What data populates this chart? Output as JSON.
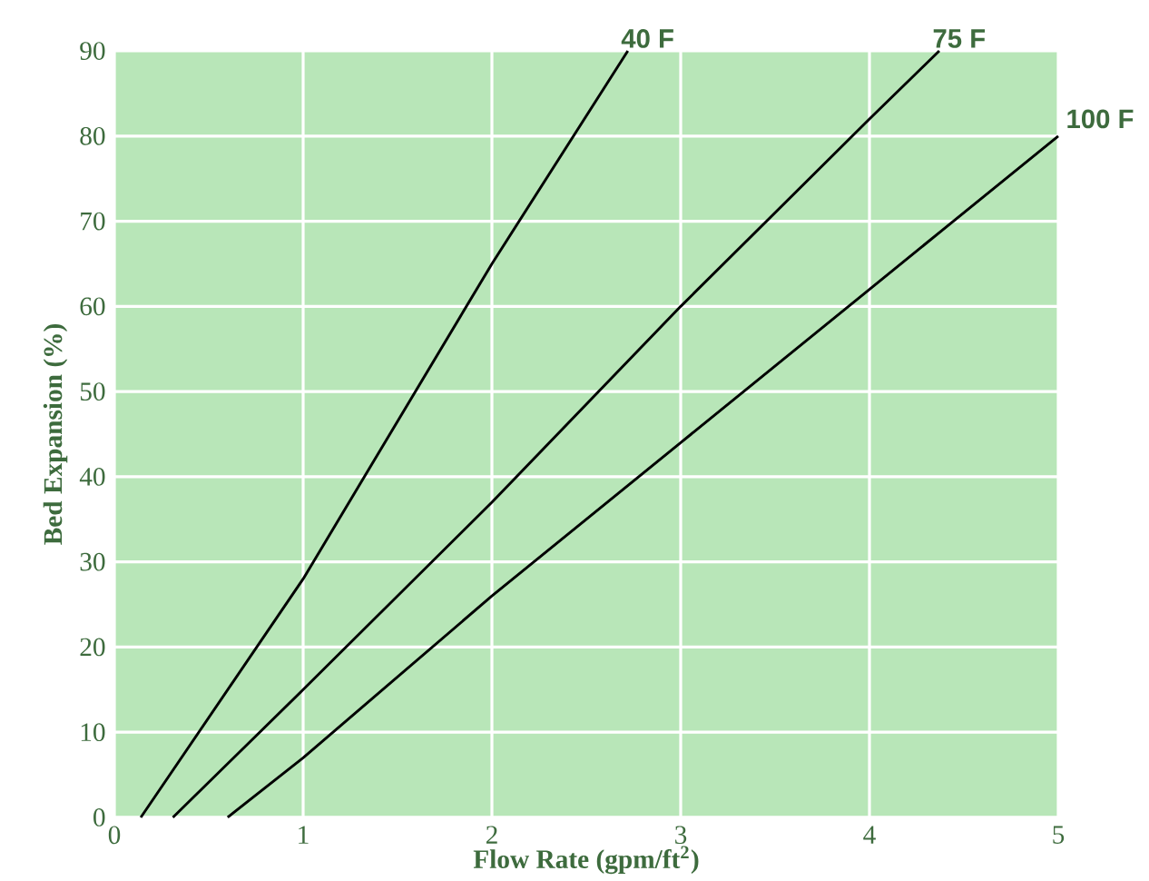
{
  "chart_data": {
    "type": "line",
    "xlabel": "Flow Rate (gpm/ft$^{2}$)",
    "ylabel": "Bed Expansion (%)",
    "xlim": [
      0,
      5
    ],
    "ylim": [
      0,
      90
    ],
    "xticks": [
      0,
      1,
      2,
      3,
      4,
      5
    ],
    "yticks": [
      0,
      10,
      20,
      30,
      40,
      50,
      60,
      70,
      80,
      90
    ],
    "grid": true,
    "marker": "none",
    "line_style": "solid",
    "legend": false,
    "series": [
      {
        "name": "40 F",
        "color": "#000000",
        "x": [
          0.14,
          1,
          2,
          2.72
        ],
        "values": [
          0,
          28,
          65,
          90
        ]
      },
      {
        "name": "75 F",
        "color": "#000000",
        "x": [
          0.31,
          1,
          2,
          3,
          4,
          4.37
        ],
        "values": [
          0,
          15,
          37,
          60,
          82,
          90
        ]
      },
      {
        "name": "100 F",
        "color": "#000000",
        "x": [
          0.6,
          1,
          2,
          3,
          4,
          5
        ],
        "values": [
          0,
          7,
          26,
          44,
          62,
          80
        ]
      }
    ]
  }
}
